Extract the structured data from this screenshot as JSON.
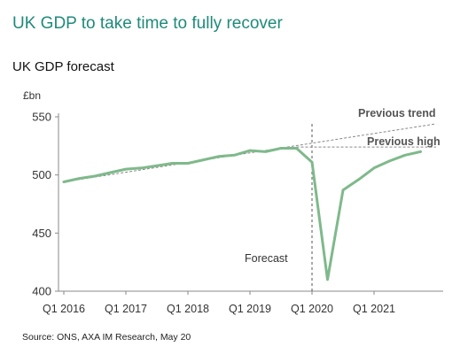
{
  "header": {
    "title": "UK GDP to take time to fully recover",
    "subtitle": "UK GDP forecast"
  },
  "footer": {
    "source": "Source: ONS, AXA IM Research, May 20"
  },
  "colors": {
    "title": "#1f8a7a",
    "gdp_line": "#7fb98b",
    "trend_line": "#888888"
  },
  "chart_data": {
    "type": "line",
    "ylabel": "£bn",
    "ylim": [
      400,
      550
    ],
    "yticks": [
      400,
      450,
      500,
      550
    ],
    "x_tick_labels": [
      "Q1 2016",
      "Q1 2017",
      "Q1 2018",
      "Q1 2019",
      "Q1 2020",
      "Q1 2021"
    ],
    "x_tick_index": [
      0,
      4,
      8,
      12,
      16,
      20
    ],
    "forecast_start_index": 16,
    "x": [
      "Q1 2016",
      "Q2 2016",
      "Q3 2016",
      "Q4 2016",
      "Q1 2017",
      "Q2 2017",
      "Q3 2017",
      "Q4 2017",
      "Q1 2018",
      "Q2 2018",
      "Q3 2018",
      "Q4 2018",
      "Q1 2019",
      "Q2 2019",
      "Q3 2019",
      "Q4 2019",
      "Q1 2020",
      "Q2 2020",
      "Q3 2020",
      "Q4 2020",
      "Q1 2021",
      "Q2 2021",
      "Q3 2021",
      "Q4 2021"
    ],
    "series": [
      {
        "values": [
          494,
          497,
          499,
          502,
          505,
          506,
          508,
          510,
          510,
          513,
          516,
          517,
          521,
          520,
          523,
          523,
          511,
          410,
          487,
          496,
          506,
          512,
          517,
          520
        ]
      }
    ],
    "trend": {
      "from": [
        0,
        494
      ],
      "to": [
        24,
        544
      ]
    },
    "previous_high": {
      "from": [
        15,
        524
      ],
      "to": [
        24,
        524
      ]
    },
    "annotations": {
      "previous_trend": "Previous trend",
      "previous_high": "Previous high",
      "forecast": "Forecast"
    }
  }
}
